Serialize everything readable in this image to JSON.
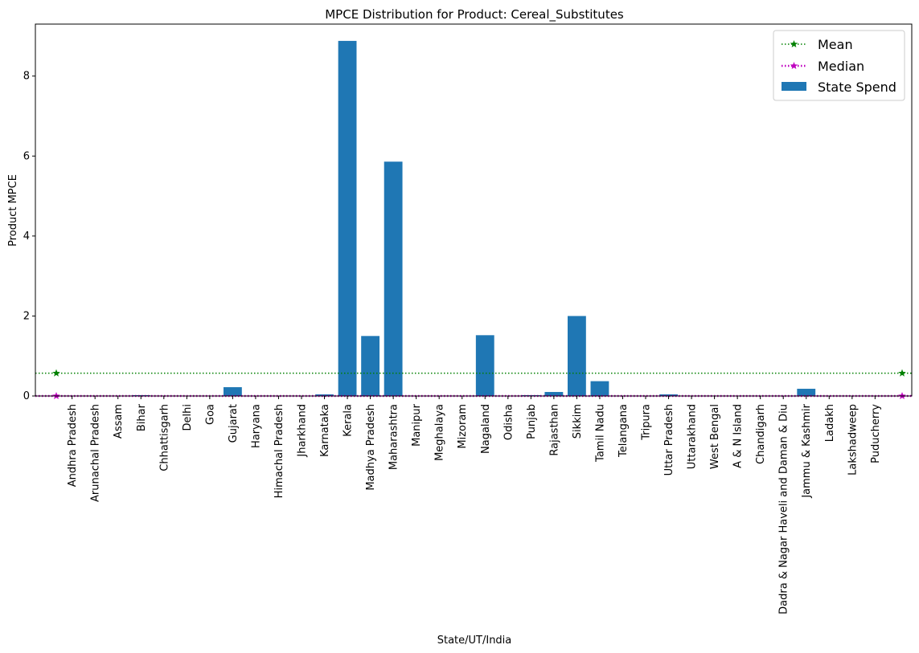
{
  "chart_data": {
    "type": "bar",
    "title": "MPCE Distribution for Product: Cereal_Substitutes",
    "xlabel": "State/UT/India",
    "ylabel": "Product MPCE",
    "ylim": [
      0,
      9.3
    ],
    "yticks": [
      0,
      2,
      4,
      6,
      8
    ],
    "categories": [
      "Andhra Pradesh",
      "Arunachal Pradesh",
      "Assam",
      "Bihar",
      "Chhattisgarh",
      "Delhi",
      "Goa",
      "Gujarat",
      "Haryana",
      "Himachal Pradesh",
      "Jharkhand",
      "Karnataka",
      "Kerala",
      "Madhya Pradesh",
      "Maharashtra",
      "Manipur",
      "Meghalaya",
      "Mizoram",
      "Nagaland",
      "Odisha",
      "Punjab",
      "Rajasthan",
      "Sikkim",
      "Tamil Nadu",
      "Telangana",
      "Tripura",
      "Uttar Pradesh",
      "Uttarakhand",
      "West Bengal",
      "A & N Island",
      "Chandigarh",
      "Dadra & Nagar Haveli and Daman & Diu",
      "Jammu & Kashmir",
      "Ladakh",
      "Lakshadweep",
      "Puducherry"
    ],
    "values": [
      0.0,
      0.0,
      0.0,
      0.02,
      0.0,
      0.0,
      0.0,
      0.22,
      0.01,
      0.0,
      0.0,
      0.04,
      8.88,
      1.5,
      5.86,
      0.0,
      0.0,
      0.0,
      1.52,
      0.0,
      0.02,
      0.1,
      2.0,
      0.37,
      0.0,
      0.0,
      0.04,
      0.0,
      0.0,
      0.0,
      0.0,
      0.0,
      0.18,
      0.0,
      0.0,
      0.0
    ],
    "series": [
      {
        "name": "State Spend",
        "color": "#1f77b4"
      }
    ],
    "lines": [
      {
        "name": "Mean",
        "value": 0.57,
        "color": "#008000",
        "style": "dotted",
        "marker": "star"
      },
      {
        "name": "Median",
        "value": 0.0,
        "color": "#bf00bf",
        "style": "dotted",
        "marker": "star"
      }
    ],
    "legend": {
      "position": "top-right",
      "entries": [
        "Mean",
        "Median",
        "State Spend"
      ]
    }
  }
}
